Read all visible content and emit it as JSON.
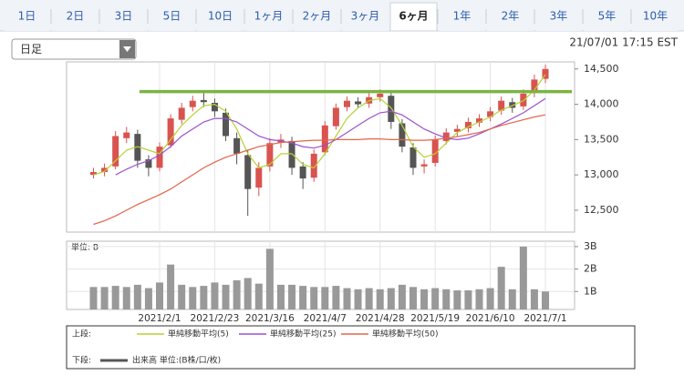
{
  "tabs": [
    "1日",
    "2日",
    "3日",
    "5日",
    "10日",
    "1ヶ月",
    "2ヶ月",
    "3ヶ月",
    "6ヶ月",
    "1年",
    "2年",
    "3年",
    "5年",
    "10年"
  ],
  "selected_tab": 8,
  "dropdown": "日足",
  "timestamp": "21/07/01 17:15 EST",
  "chart_data": [
    {
      "type": "candlestick",
      "legend_label": "上段:",
      "up_color": "#d9534f",
      "down_color": "#555555",
      "open": [
        13000,
        13040,
        13120,
        13520,
        13580,
        13220,
        13100,
        13420,
        13780,
        13960,
        14060,
        14020,
        13880,
        13520,
        13280,
        12820,
        13120,
        13460,
        13480,
        13120,
        12960,
        13320,
        13690,
        13960,
        14040,
        14010,
        14100,
        14120,
        13730,
        13390,
        13120,
        13170,
        13480,
        13610,
        13660,
        13740,
        13820,
        13910,
        14030,
        13970,
        14160,
        14360
      ],
      "high": [
        13100,
        13160,
        13620,
        13680,
        13640,
        13280,
        13460,
        13860,
        14020,
        14120,
        14160,
        14080,
        13940,
        13600,
        13350,
        13180,
        13520,
        13580,
        13540,
        13180,
        13360,
        13760,
        14010,
        14110,
        14100,
        14160,
        14210,
        14170,
        13790,
        13450,
        13220,
        13560,
        13660,
        13710,
        13810,
        13860,
        13960,
        14110,
        14090,
        14210,
        14420,
        14560
      ],
      "low": [
        12950,
        12980,
        13080,
        13450,
        13100,
        12980,
        13050,
        13380,
        13720,
        13900,
        13960,
        13820,
        13480,
        13150,
        12420,
        12700,
        13050,
        13380,
        13000,
        12800,
        12900,
        13280,
        13640,
        13900,
        13940,
        13950,
        14040,
        13650,
        13320,
        13000,
        13020,
        13120,
        13430,
        13540,
        13600,
        13680,
        13760,
        13850,
        13880,
        13920,
        14100,
        14300
      ],
      "close": [
        13040,
        13100,
        13550,
        13600,
        13200,
        13100,
        13400,
        13800,
        13950,
        14050,
        14030,
        13900,
        13550,
        13300,
        12800,
        13100,
        13450,
        13500,
        13100,
        12950,
        13300,
        13700,
        13950,
        14050,
        14000,
        14100,
        14150,
        13750,
        13400,
        13100,
        13150,
        13500,
        13600,
        13650,
        13750,
        13800,
        13900,
        14050,
        13950,
        14150,
        14350,
        14500
      ],
      "series": [
        {
          "name": "単純移動平均(5)",
          "color": "#b5d334",
          "values": [
            13000,
            13050,
            13200,
            13350,
            13400,
            13350,
            13300,
            13500,
            13700,
            13850,
            13980,
            14000,
            13900,
            13650,
            13300,
            13100,
            13150,
            13300,
            13300,
            13150,
            13100,
            13300,
            13550,
            13800,
            13950,
            14050,
            14080,
            13950,
            13700,
            13400,
            13250,
            13300,
            13450,
            13600,
            13680,
            13750,
            13820,
            13920,
            13980,
            14050,
            14200,
            14420
          ]
        },
        {
          "name": "単純移動平均(25)",
          "color": "#9c4fd0",
          "values": [
            null,
            null,
            13000,
            13080,
            13150,
            13200,
            13280,
            13400,
            13550,
            13650,
            13750,
            13800,
            13800,
            13750,
            13650,
            13550,
            13500,
            13480,
            13450,
            13400,
            13380,
            13420,
            13500,
            13600,
            13700,
            13800,
            13880,
            13900,
            13850,
            13750,
            13650,
            13580,
            13520,
            13500,
            13520,
            13580,
            13650,
            13720,
            13800,
            13880,
            13980,
            14080
          ]
        },
        {
          "name": "単純移動平均(50)",
          "color": "#e0654a",
          "values": [
            12300,
            12350,
            12420,
            12500,
            12580,
            12650,
            12720,
            12800,
            12900,
            13000,
            13100,
            13180,
            13250,
            13300,
            13350,
            13400,
            13430,
            13460,
            13470,
            13480,
            13490,
            13490,
            13500,
            13500,
            13500,
            13510,
            13510,
            13500,
            13500,
            13490,
            13490,
            13500,
            13520,
            13540,
            13570,
            13600,
            13650,
            13700,
            13740,
            13780,
            13820,
            13850
          ]
        }
      ],
      "hline": {
        "value": 14180,
        "color": "#7cb342"
      },
      "ylim": [
        12190,
        14600
      ],
      "yticks": [
        {
          "value": 12500,
          "label": "12,500"
        },
        {
          "value": 13000,
          "label": "13,000"
        },
        {
          "value": 13500,
          "label": "13,500"
        },
        {
          "value": 14000,
          "label": "14,000"
        },
        {
          "value": 14500,
          "label": "14,500"
        }
      ]
    },
    {
      "type": "bar",
      "legend_label": "下段:",
      "unit_label": "単位: B",
      "categories": [
        null,
        null,
        null,
        null,
        null,
        null,
        "2021/2/1",
        null,
        null,
        null,
        null,
        "2021/2/23",
        null,
        null,
        null,
        null,
        "2021/3/16",
        null,
        null,
        null,
        null,
        "2021/4/7",
        null,
        null,
        null,
        null,
        "2021/4/28",
        null,
        null,
        null,
        null,
        "2021/5/19",
        null,
        null,
        null,
        null,
        "2021/6/10",
        null,
        null,
        null,
        null,
        "2021/7/1"
      ],
      "series": [
        {
          "name": "出来高 単位:(B株/口/枚)",
          "color": "#999999",
          "values": [
            1.2,
            1.2,
            1.25,
            1.2,
            1.3,
            1.15,
            1.4,
            2.2,
            1.3,
            1.2,
            1.25,
            1.4,
            1.3,
            1.5,
            1.6,
            1.35,
            2.9,
            1.3,
            1.3,
            1.25,
            1.2,
            1.2,
            1.25,
            1.15,
            1.1,
            1.15,
            1.1,
            1.15,
            1.3,
            1.2,
            1.1,
            1.15,
            1.1,
            1.05,
            1.05,
            1.1,
            1.15,
            2.1,
            1.1,
            3.0,
            1.1,
            1.0
          ]
        }
      ],
      "ylim": [
        0.2,
        3.24
      ],
      "yticks": [
        {
          "value": 1,
          "label": "1B"
        },
        {
          "value": 2,
          "label": "2B"
        },
        {
          "value": 3,
          "label": "3B"
        }
      ]
    }
  ]
}
